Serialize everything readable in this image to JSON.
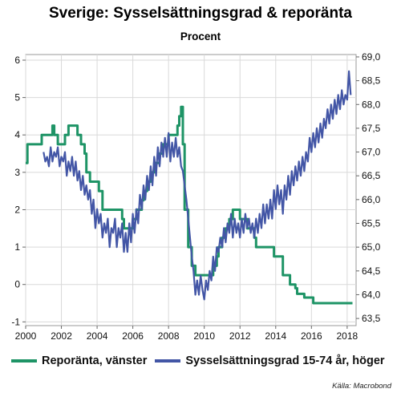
{
  "chart_data": {
    "type": "line",
    "title": "Sverige: Sysselsättningsgrad & reporänta",
    "subtitle": "Procent",
    "grid": true,
    "legend_position": "bottom",
    "source": "Källa: Macrobond",
    "x_ticks": [
      "2000",
      "2002",
      "2004",
      "2006",
      "2008",
      "2010",
      "2012",
      "2014",
      "2016",
      "2018"
    ],
    "x_range": [
      2000,
      2018.5
    ],
    "y_left": {
      "ticks": [
        "6",
        "5",
        "4",
        "3",
        "2",
        "1",
        "0",
        "-1"
      ],
      "range": [
        -1.1,
        6.15
      ]
    },
    "y_right": {
      "ticks": [
        "69,0",
        "68,5",
        "68,0",
        "67,5",
        "67,0",
        "66,5",
        "66,0",
        "65,5",
        "65,0",
        "64,5",
        "64,0",
        "63,5"
      ],
      "range": [
        63.35,
        69.05
      ]
    },
    "series": [
      {
        "name": "Reporänta, vänster",
        "axis": "left",
        "color": "#1e9466",
        "step": true,
        "points": [
          [
            2000.0,
            3.25
          ],
          [
            2000.1,
            3.75
          ],
          [
            2000.9,
            4.0
          ],
          [
            2001.5,
            4.25
          ],
          [
            2001.6,
            4.0
          ],
          [
            2001.8,
            3.75
          ],
          [
            2002.2,
            4.0
          ],
          [
            2002.4,
            4.25
          ],
          [
            2002.9,
            4.0
          ],
          [
            2003.1,
            3.75
          ],
          [
            2003.3,
            3.5
          ],
          [
            2003.4,
            3.0
          ],
          [
            2003.6,
            2.75
          ],
          [
            2004.1,
            2.5
          ],
          [
            2004.3,
            2.0
          ],
          [
            2005.4,
            1.75
          ],
          [
            2005.5,
            1.5
          ],
          [
            2006.0,
            1.75
          ],
          [
            2006.2,
            2.0
          ],
          [
            2006.5,
            2.25
          ],
          [
            2006.6,
            2.5
          ],
          [
            2006.8,
            2.75
          ],
          [
            2007.0,
            3.0
          ],
          [
            2007.2,
            3.25
          ],
          [
            2007.5,
            3.5
          ],
          [
            2007.7,
            3.75
          ],
          [
            2008.0,
            4.0
          ],
          [
            2008.5,
            4.25
          ],
          [
            2008.6,
            4.5
          ],
          [
            2008.7,
            4.75
          ],
          [
            2008.8,
            3.75
          ],
          [
            2008.9,
            2.0
          ],
          [
            2009.0,
            2.0
          ],
          [
            2009.1,
            1.0
          ],
          [
            2009.3,
            0.5
          ],
          [
            2009.5,
            0.25
          ],
          [
            2010.5,
            0.5
          ],
          [
            2010.7,
            0.75
          ],
          [
            2010.8,
            1.0
          ],
          [
            2011.0,
            1.25
          ],
          [
            2011.2,
            1.5
          ],
          [
            2011.4,
            1.75
          ],
          [
            2011.6,
            2.0
          ],
          [
            2012.0,
            1.75
          ],
          [
            2012.4,
            1.5
          ],
          [
            2012.8,
            1.25
          ],
          [
            2012.9,
            1.0
          ],
          [
            2013.9,
            0.75
          ],
          [
            2014.4,
            0.25
          ],
          [
            2014.8,
            0.0
          ],
          [
            2015.1,
            -0.1
          ],
          [
            2015.2,
            -0.25
          ],
          [
            2015.6,
            -0.35
          ],
          [
            2016.1,
            -0.5
          ],
          [
            2018.3,
            -0.5
          ]
        ]
      },
      {
        "name": "Sysselsättningsgrad 15-74 år, höger",
        "axis": "right",
        "color": "#4356a6",
        "step": false,
        "points": [
          [
            2001.0,
            67.0
          ],
          [
            2001.1,
            66.8
          ],
          [
            2001.2,
            66.9
          ],
          [
            2001.3,
            66.7
          ],
          [
            2001.4,
            67.1
          ],
          [
            2001.5,
            66.8
          ],
          [
            2001.6,
            67.0
          ],
          [
            2001.7,
            66.9
          ],
          [
            2001.8,
            67.1
          ],
          [
            2001.9,
            66.7
          ],
          [
            2002.0,
            66.9
          ],
          [
            2002.1,
            66.8
          ],
          [
            2002.2,
            67.0
          ],
          [
            2002.3,
            66.5
          ],
          [
            2002.4,
            66.8
          ],
          [
            2002.5,
            66.6
          ],
          [
            2002.6,
            66.9
          ],
          [
            2002.7,
            66.5
          ],
          [
            2002.8,
            66.8
          ],
          [
            2002.9,
            66.4
          ],
          [
            2003.0,
            66.6
          ],
          [
            2003.1,
            66.2
          ],
          [
            2003.2,
            66.5
          ],
          [
            2003.3,
            66.1
          ],
          [
            2003.4,
            66.3
          ],
          [
            2003.5,
            66.0
          ],
          [
            2003.6,
            66.2
          ],
          [
            2003.7,
            65.7
          ],
          [
            2003.8,
            66.0
          ],
          [
            2003.9,
            65.4
          ],
          [
            2004.0,
            65.8
          ],
          [
            2004.1,
            65.5
          ],
          [
            2004.2,
            65.7
          ],
          [
            2004.3,
            65.2
          ],
          [
            2004.4,
            65.5
          ],
          [
            2004.5,
            65.3
          ],
          [
            2004.6,
            65.6
          ],
          [
            2004.7,
            65.0
          ],
          [
            2004.8,
            65.4
          ],
          [
            2004.9,
            65.3
          ],
          [
            2005.0,
            65.6
          ],
          [
            2005.1,
            65.0
          ],
          [
            2005.2,
            65.4
          ],
          [
            2005.3,
            65.2
          ],
          [
            2005.4,
            65.5
          ],
          [
            2005.5,
            64.9
          ],
          [
            2005.6,
            65.3
          ],
          [
            2005.7,
            64.9
          ],
          [
            2005.8,
            65.5
          ],
          [
            2005.9,
            65.1
          ],
          [
            2006.0,
            65.7
          ],
          [
            2006.1,
            65.3
          ],
          [
            2006.2,
            65.8
          ],
          [
            2006.3,
            65.5
          ],
          [
            2006.4,
            66.1
          ],
          [
            2006.5,
            65.8
          ],
          [
            2006.6,
            66.3
          ],
          [
            2006.7,
            66.0
          ],
          [
            2006.8,
            66.5
          ],
          [
            2006.9,
            66.2
          ],
          [
            2007.0,
            66.7
          ],
          [
            2007.1,
            66.3
          ],
          [
            2007.2,
            66.9
          ],
          [
            2007.3,
            66.5
          ],
          [
            2007.4,
            67.1
          ],
          [
            2007.5,
            66.7
          ],
          [
            2007.6,
            67.2
          ],
          [
            2007.7,
            66.9
          ],
          [
            2007.8,
            67.3
          ],
          [
            2007.9,
            66.9
          ],
          [
            2008.0,
            67.4
          ],
          [
            2008.1,
            66.8
          ],
          [
            2008.2,
            67.2
          ],
          [
            2008.3,
            66.9
          ],
          [
            2008.4,
            67.3
          ],
          [
            2008.5,
            66.9
          ],
          [
            2008.6,
            67.1
          ],
          [
            2008.7,
            66.7
          ],
          [
            2008.8,
            66.6
          ],
          [
            2008.9,
            66.3
          ],
          [
            2009.0,
            66.0
          ],
          [
            2009.1,
            65.6
          ],
          [
            2009.2,
            65.2
          ],
          [
            2009.3,
            64.8
          ],
          [
            2009.4,
            64.5
          ],
          [
            2009.5,
            64.0
          ],
          [
            2009.6,
            64.3
          ],
          [
            2009.7,
            64.0
          ],
          [
            2009.8,
            64.4
          ],
          [
            2009.9,
            64.1
          ],
          [
            2010.0,
            63.9
          ],
          [
            2010.1,
            64.3
          ],
          [
            2010.2,
            64.1
          ],
          [
            2010.3,
            64.5
          ],
          [
            2010.4,
            64.3
          ],
          [
            2010.5,
            64.8
          ],
          [
            2010.6,
            64.5
          ],
          [
            2010.7,
            65.0
          ],
          [
            2010.8,
            64.9
          ],
          [
            2010.9,
            65.2
          ],
          [
            2011.0,
            65.0
          ],
          [
            2011.1,
            65.4
          ],
          [
            2011.2,
            65.1
          ],
          [
            2011.3,
            65.5
          ],
          [
            2011.4,
            65.3
          ],
          [
            2011.5,
            65.7
          ],
          [
            2011.6,
            65.2
          ],
          [
            2011.7,
            65.6
          ],
          [
            2011.8,
            65.3
          ],
          [
            2011.9,
            65.5
          ],
          [
            2012.0,
            65.2
          ],
          [
            2012.1,
            65.6
          ],
          [
            2012.2,
            65.3
          ],
          [
            2012.3,
            65.7
          ],
          [
            2012.4,
            65.4
          ],
          [
            2012.5,
            65.6
          ],
          [
            2012.6,
            65.3
          ],
          [
            2012.7,
            65.5
          ],
          [
            2012.8,
            65.2
          ],
          [
            2012.9,
            65.6
          ],
          [
            2013.0,
            65.3
          ],
          [
            2013.1,
            65.7
          ],
          [
            2013.2,
            65.4
          ],
          [
            2013.3,
            65.9
          ],
          [
            2013.4,
            65.5
          ],
          [
            2013.5,
            65.9
          ],
          [
            2013.6,
            65.6
          ],
          [
            2013.7,
            66.0
          ],
          [
            2013.8,
            65.6
          ],
          [
            2013.9,
            66.2
          ],
          [
            2014.0,
            65.8
          ],
          [
            2014.1,
            66.3
          ],
          [
            2014.2,
            65.9
          ],
          [
            2014.3,
            66.2
          ],
          [
            2014.4,
            65.7
          ],
          [
            2014.5,
            66.3
          ],
          [
            2014.6,
            66.0
          ],
          [
            2014.7,
            66.5
          ],
          [
            2014.8,
            66.1
          ],
          [
            2014.9,
            66.6
          ],
          [
            2015.0,
            66.3
          ],
          [
            2015.1,
            66.7
          ],
          [
            2015.2,
            66.4
          ],
          [
            2015.3,
            66.8
          ],
          [
            2015.4,
            66.5
          ],
          [
            2015.5,
            66.9
          ],
          [
            2015.6,
            66.6
          ],
          [
            2015.7,
            67.0
          ],
          [
            2015.8,
            66.8
          ],
          [
            2015.9,
            67.3
          ],
          [
            2016.0,
            67.0
          ],
          [
            2016.1,
            67.4
          ],
          [
            2016.2,
            67.1
          ],
          [
            2016.3,
            67.5
          ],
          [
            2016.4,
            67.2
          ],
          [
            2016.5,
            67.6
          ],
          [
            2016.6,
            67.3
          ],
          [
            2016.7,
            67.7
          ],
          [
            2016.8,
            67.5
          ],
          [
            2016.9,
            67.9
          ],
          [
            2017.0,
            67.6
          ],
          [
            2017.1,
            68.0
          ],
          [
            2017.2,
            67.7
          ],
          [
            2017.3,
            68.1
          ],
          [
            2017.4,
            67.8
          ],
          [
            2017.5,
            68.2
          ],
          [
            2017.6,
            67.9
          ],
          [
            2017.7,
            68.3
          ],
          [
            2017.8,
            68.0
          ],
          [
            2017.9,
            68.2
          ],
          [
            2018.0,
            68.1
          ],
          [
            2018.1,
            68.7
          ],
          [
            2018.2,
            68.2
          ]
        ]
      }
    ]
  }
}
